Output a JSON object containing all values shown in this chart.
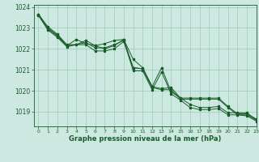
{
  "bg_color": "#cce8e0",
  "grid_color": "#99ccbb",
  "line_color": "#1a5c2a",
  "marker_color": "#1a5c2a",
  "xlabel": "Graphe pression niveau de la mer (hPa)",
  "xlabel_color": "#1a5c2a",
  "tick_color": "#1a5c2a",
  "xlim": [
    -0.5,
    23
  ],
  "ylim": [
    1018.3,
    1024.1
  ],
  "yticks": [
    1019,
    1020,
    1021,
    1022,
    1023,
    1024
  ],
  "xticks": [
    0,
    1,
    2,
    3,
    4,
    5,
    6,
    7,
    8,
    9,
    10,
    11,
    12,
    13,
    14,
    15,
    16,
    17,
    18,
    19,
    20,
    21,
    22,
    23
  ],
  "series1_x": [
    0,
    1,
    2,
    3,
    4,
    5,
    6,
    7,
    8,
    9,
    10,
    11,
    12,
    13,
    14,
    15,
    16,
    17,
    18,
    19,
    20,
    21,
    22,
    23
  ],
  "series1_y": [
    1023.65,
    1023.05,
    1022.7,
    1022.2,
    1022.2,
    1022.4,
    1022.15,
    1022.25,
    1022.4,
    1022.45,
    1021.1,
    1021.05,
    1020.2,
    1021.1,
    1019.95,
    1019.65,
    1019.35,
    1019.2,
    1019.2,
    1019.25,
    1018.95,
    1018.95,
    1018.95,
    1018.6
  ],
  "series2_x": [
    0,
    1,
    2,
    3,
    4,
    5,
    6,
    7,
    8,
    9,
    10,
    11,
    12,
    13,
    14,
    15,
    16,
    17,
    18,
    19,
    20,
    21,
    22,
    23
  ],
  "series2_y": [
    1023.65,
    1023.0,
    1022.65,
    1022.15,
    1022.2,
    1022.3,
    1022.05,
    1022.05,
    1022.2,
    1022.4,
    1020.95,
    1020.95,
    1020.05,
    1020.9,
    1019.85,
    1019.55,
    1019.2,
    1019.1,
    1019.1,
    1019.15,
    1018.85,
    1018.85,
    1018.8,
    1018.55
  ],
  "series3_x": [
    0,
    1,
    2,
    3,
    4,
    5,
    6,
    7,
    8,
    9,
    10,
    11,
    12,
    13,
    14,
    15,
    16,
    17,
    18,
    19,
    20,
    21,
    22,
    23
  ],
  "series3_y": [
    1023.6,
    1022.95,
    1022.6,
    1022.15,
    1022.45,
    1022.25,
    1022.15,
    1022.0,
    1022.15,
    1022.45,
    1021.5,
    1021.1,
    1020.2,
    1020.1,
    1020.15,
    1019.65,
    1019.65,
    1019.65,
    1019.65,
    1019.65,
    1019.25,
    1018.9,
    1018.9,
    1018.65
  ],
  "series4_x": [
    0,
    1,
    2,
    3,
    4,
    5,
    6,
    7,
    8,
    9,
    10,
    11,
    12,
    13,
    14,
    15,
    16,
    17,
    18,
    19,
    20,
    21,
    22,
    23
  ],
  "series4_y": [
    1023.6,
    1022.9,
    1022.55,
    1022.1,
    1022.2,
    1022.2,
    1021.9,
    1021.9,
    1022.0,
    1022.35,
    1021.1,
    1021.05,
    1020.15,
    1020.05,
    1020.05,
    1019.6,
    1019.6,
    1019.6,
    1019.6,
    1019.6,
    1019.2,
    1018.85,
    1018.85,
    1018.6
  ]
}
